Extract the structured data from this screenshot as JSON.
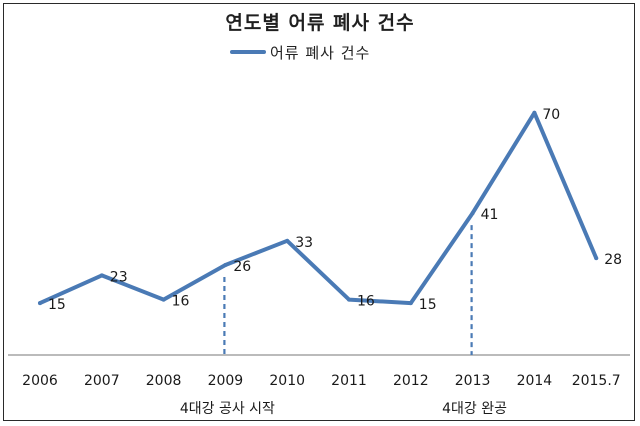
{
  "chart_data": {
    "type": "line",
    "title": "연도별 어류 폐사 건수",
    "categories": [
      "2006",
      "2007",
      "2008",
      "2009",
      "2010",
      "2011",
      "2012",
      "2013",
      "2014",
      "2015.7"
    ],
    "series": [
      {
        "name": "어류 폐사 건수",
        "values": [
          15,
          23,
          16,
          26,
          33,
          16,
          15,
          41,
          70,
          28
        ]
      }
    ],
    "legend_position": "top",
    "grid": false,
    "data_labels": true,
    "annotations": [
      {
        "text": "4대강 공사 시작",
        "category": "2009"
      },
      {
        "text": "4대강 완공",
        "category": "2013"
      }
    ],
    "series_color": "#4a7ab5"
  }
}
